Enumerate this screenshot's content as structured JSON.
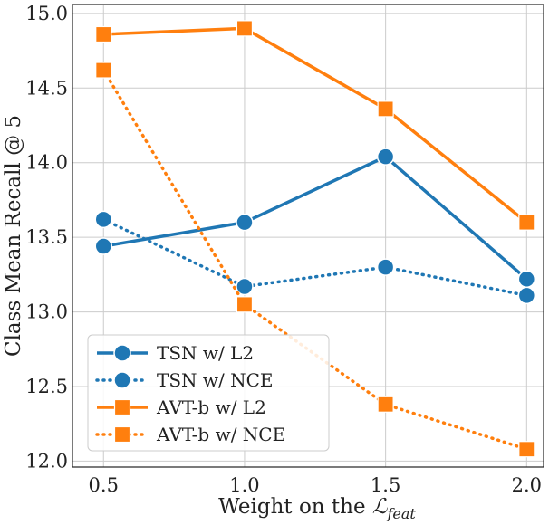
{
  "chart_data": {
    "type": "line",
    "x": [
      0.5,
      1.0,
      1.5,
      2.0
    ],
    "x_tick_labels": [
      "0.5",
      "1.0",
      "1.5",
      "2.0"
    ],
    "y_tick_values": [
      12.0,
      12.5,
      13.0,
      13.5,
      14.0,
      14.5,
      15.0
    ],
    "y_tick_labels": [
      "12.0",
      "12.5",
      "13.0",
      "13.5",
      "14.0",
      "14.5",
      "15.0"
    ],
    "xlim": [
      0.39,
      2.06
    ],
    "ylim": [
      11.96,
      15.06
    ],
    "xlabel_prefix": "Weight on the ",
    "xlabel_symbol": "ℒ",
    "xlabel_subscript": "feat",
    "ylabel": "Class Mean Recall @ 5",
    "grid": true,
    "legend_position": "bottom-left",
    "series": [
      {
        "name": "TSN w/ L2",
        "values": [
          13.44,
          13.6,
          14.04,
          13.22
        ],
        "color": "#1f77b4",
        "line": "solid",
        "marker": "circle"
      },
      {
        "name": "TSN w/ NCE",
        "values": [
          13.62,
          13.17,
          13.3,
          13.11
        ],
        "color": "#1f77b4",
        "line": "dotted",
        "marker": "circle"
      },
      {
        "name": "AVT-b w/ L2",
        "values": [
          14.86,
          14.9,
          14.36,
          13.6
        ],
        "color": "#ff7f0e",
        "line": "solid",
        "marker": "square"
      },
      {
        "name": "AVT-b w/ NCE",
        "values": [
          14.62,
          13.05,
          12.38,
          12.08
        ],
        "color": "#ff7f0e",
        "line": "dotted",
        "marker": "square"
      }
    ]
  }
}
